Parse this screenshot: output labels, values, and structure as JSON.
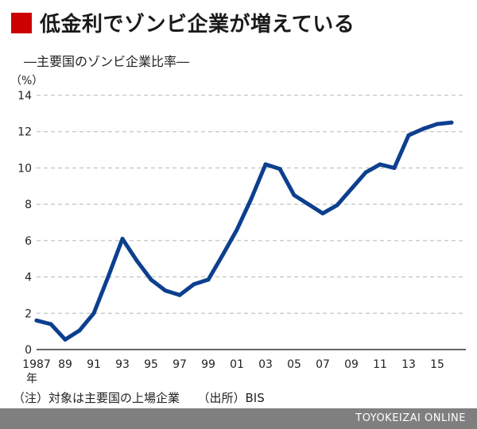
{
  "header": {
    "title": "低金利でゾンビ企業が増えている",
    "subtitle": "―主要国のゾンビ企業比率―",
    "accent_color": "#cc0000"
  },
  "note": "（注）対象は主要国の上場企業　　（出所）BIS",
  "credit": "TOYOKEIZAI ONLINE",
  "chart_data": {
    "type": "line",
    "title": "",
    "xlabel": "",
    "ylabel": "",
    "unit_label": "（%）",
    "ylim": [
      0,
      14
    ],
    "yticks": [
      "0",
      "2",
      "4",
      "6",
      "8",
      "10",
      "12",
      "14"
    ],
    "xticks": [
      "1987",
      "89",
      "91",
      "93",
      "95",
      "97",
      "99",
      "01",
      "03",
      "05",
      "07",
      "09",
      "11",
      "13",
      "15"
    ],
    "x_suffix": "年",
    "grid": true,
    "line_color": "#0d3f8f",
    "x": [
      1987,
      1988,
      1989,
      1990,
      1991,
      1992,
      1993,
      1994,
      1995,
      1996,
      1997,
      1998,
      1999,
      2000,
      2001,
      2002,
      2003,
      2004,
      2005,
      2006,
      2007,
      2008,
      2009,
      2010,
      2011,
      2012,
      2013,
      2014,
      2015,
      2016
    ],
    "series": [
      {
        "values": [
          1.6,
          1.4,
          0.55,
          1.05,
          2.0,
          4.0,
          6.1,
          4.9,
          3.85,
          3.25,
          3.0,
          3.6,
          3.85,
          5.2,
          6.6,
          8.3,
          10.2,
          9.95,
          8.5,
          8.0,
          7.5,
          7.95,
          8.85,
          9.75,
          10.2,
          10.0,
          11.8,
          12.15,
          12.42,
          12.5
        ]
      }
    ]
  }
}
